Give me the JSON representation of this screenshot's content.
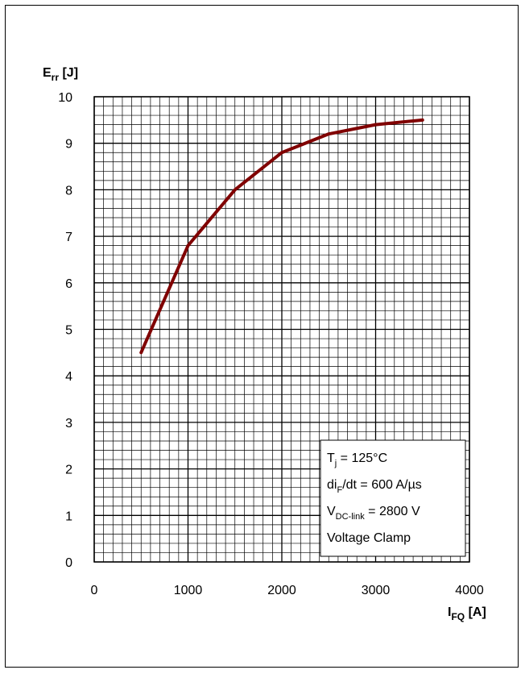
{
  "chart_data": {
    "type": "line",
    "title": "",
    "xlabel": {
      "main": "I",
      "sub": "FQ",
      "unit": " [A]"
    },
    "ylabel": {
      "main": "E",
      "sub": "rr",
      "unit": " [J]"
    },
    "xlim": [
      0,
      4000
    ],
    "ylim": [
      0,
      10
    ],
    "x_ticks": [
      0,
      1000,
      2000,
      3000,
      4000
    ],
    "y_ticks": [
      0,
      1,
      2,
      3,
      4,
      5,
      6,
      7,
      8,
      9,
      10
    ],
    "x_minor_step": 100,
    "y_minor_step": 0.2,
    "grid": true,
    "series": [
      {
        "color": "#800000",
        "x": [
          500,
          1000,
          1500,
          2000,
          2500,
          3000,
          3500
        ],
        "y": [
          4.5,
          6.8,
          8.0,
          8.8,
          9.2,
          9.4,
          9.5
        ]
      }
    ],
    "annotation_box": {
      "placement": "bottom-right",
      "lines": [
        {
          "main": "T",
          "sub": "j",
          "rest": " = 125°C"
        },
        {
          "main": "di",
          "sub": "F",
          "rest": "/dt = 600 A/µs"
        },
        {
          "main": "V",
          "sub": "DC-link",
          "rest": " = 2800 V"
        },
        {
          "main": "Voltage Clamp",
          "sub": "",
          "rest": ""
        }
      ]
    }
  }
}
